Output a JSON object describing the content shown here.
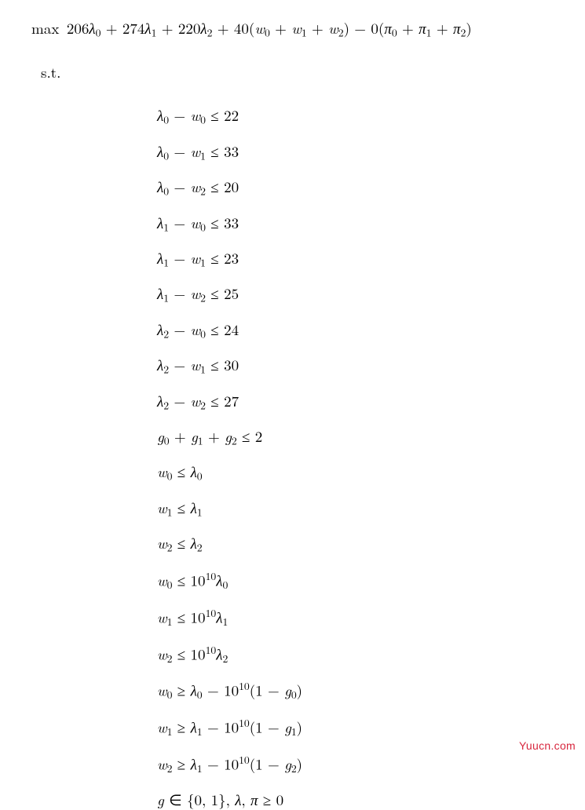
{
  "colors": {
    "text": "#000000",
    "background": "#ffffff",
    "watermark": "#d7263d"
  },
  "fontsize": {
    "body": 19,
    "sub": 14,
    "watermark": 14
  },
  "objective": {
    "op": "max",
    "c_lambda": [
      206,
      274,
      220
    ],
    "c_w": 40,
    "c_pi": 0,
    "w_vars": [
      "w_0",
      "w_1",
      "w_2"
    ],
    "pi_vars": [
      "π_0",
      "π_1",
      "π_2"
    ],
    "render": "max 206λ₀ + 274λ₁ + 220λ₂ + 40(w₀ + w₁ + w₂) − 0(π₀ + π₁ + π₂)"
  },
  "st_label": "s.t.",
  "constraints": [
    "λ₀ − w₀ ≤ 22",
    "λ₀ − w₁ ≤ 33",
    "λ₀ − w₂ ≤ 20",
    "λ₁ − w₀ ≤ 33",
    "λ₁ − w₁ ≤ 23",
    "λ₁ − w₂ ≤ 25",
    "λ₂ − w₀ ≤ 24",
    "λ₂ − w₁ ≤ 30",
    "λ₂ − w₂ ≤ 27",
    "g₀ + g₁ + g₂ ≤ 2",
    "w₀ ≤ λ₀",
    "w₁ ≤ λ₁",
    "w₂ ≤ λ₂",
    "w₀ ≤ 10^10 λ₀",
    "w₁ ≤ 10^10 λ₁",
    "w₂ ≤ 10^10 λ₂",
    "w₀ ≥ λ₀ − 10^10 (1 − g₀)",
    "w₁ ≥ λ₁ − 10^10 (1 − g₁)",
    "w₂ ≥ λ₁ − 10^10 (1 − g₂)",
    "g ∈ {0, 1}, λ, π ≥ 0"
  ],
  "constraints_data": {
    "A_ub_rhs": [
      22,
      33,
      20,
      33,
      23,
      25,
      24,
      30,
      27
    ],
    "g_sum_max": 2,
    "bigM_exponent": 10,
    "bigM_base": 10
  },
  "watermark": "Yuucn.com"
}
